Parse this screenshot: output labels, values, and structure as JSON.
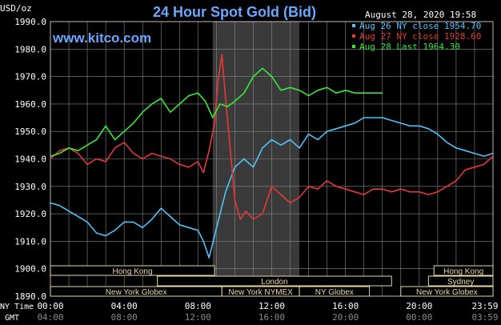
{
  "title": "24 Hour Spot Gold (Bid)",
  "site": "www.kitco.com",
  "timestamp": "August 28, 2020 19:58",
  "unit_label": "USD/oz",
  "row_labels": {
    "ny": "NY Time",
    "gmt": "GMT"
  },
  "legend": [
    {
      "text": "Aug 26 NY close 1954.70",
      "color": "#4fc3f7"
    },
    {
      "text": "Aug 27 NY close 1928.60",
      "color": "#e53935"
    },
    {
      "text": "Aug 28 Last 1964.30",
      "color": "#39e639"
    }
  ],
  "markets": [
    {
      "name": "Hong Kong",
      "row": 0,
      "start": 0,
      "end": 8.9
    },
    {
      "name": "London",
      "row": 1,
      "start": 5.8,
      "end": 18.5
    },
    {
      "name": "New York Globex",
      "row": 2,
      "start": 0,
      "end": 9.3
    },
    {
      "name": "New York NYMEX",
      "row": 2,
      "start": 9.3,
      "end": 13.5
    },
    {
      "name": "NY Globex",
      "row": 2,
      "start": 13.5,
      "end": 17.3
    },
    {
      "name": "Hong Kong",
      "row": 0,
      "start": 20.8,
      "end": 24
    },
    {
      "name": "Sydney",
      "row": 1,
      "start": 20.5,
      "end": 24
    },
    {
      "name": "New York Globex",
      "row": 2,
      "start": 19.0,
      "end": 24
    }
  ],
  "chart_data": {
    "type": "line",
    "title": "24 Hour Spot Gold (Bid)",
    "ylabel": "USD/oz",
    "xlim": [
      0,
      24
    ],
    "ylim": [
      1890,
      1990
    ],
    "y_ticks": [
      1890,
      1900,
      1910,
      1920,
      1930,
      1940,
      1950,
      1960,
      1970,
      1980,
      1990
    ],
    "y_tick_labels": [
      "1890.0",
      "1900.0",
      "1910.0",
      "1920.0",
      "1930.0",
      "1940.0",
      "1950.0",
      "1960.0",
      "1970.0",
      "1980.0",
      "1990.0"
    ],
    "x_ticks": [
      0,
      4,
      8,
      12,
      16,
      20,
      24
    ],
    "x_tick_labels_ny": [
      "00:00",
      "04:00",
      "08:00",
      "12:00",
      "16:00",
      "20:00",
      "23:59"
    ],
    "x_tick_labels_gmt": [
      "04:00",
      "08:00",
      "12:00",
      "16:00",
      "20:00",
      "00:00",
      "03:59"
    ],
    "shaded_region": [
      8.8,
      13.5
    ],
    "grid": true,
    "legend_position": "top-right",
    "series": [
      {
        "name": "Aug 26 NY close 1954.70",
        "color": "#4fc3f7",
        "x": [
          0,
          0.5,
          1,
          1.5,
          2,
          2.5,
          3,
          3.5,
          4,
          4.5,
          5,
          5.5,
          6,
          6.5,
          7,
          7.5,
          8,
          8.3,
          8.6,
          8.9,
          9.2,
          9.5,
          10,
          10.5,
          11,
          11.5,
          12,
          12.5,
          13,
          13.5,
          14,
          14.5,
          15,
          15.5,
          16,
          16.5,
          17,
          17.5,
          18,
          18.5,
          19,
          19.5,
          20,
          20.5,
          21,
          21.5,
          22,
          22.5,
          23,
          23.5,
          24
        ],
        "y": [
          1924,
          1923,
          1921,
          1919,
          1917,
          1913,
          1912,
          1914,
          1917,
          1917,
          1915,
          1918,
          1922,
          1919,
          1916,
          1915,
          1914,
          1910,
          1904,
          1912,
          1920,
          1928,
          1937,
          1940,
          1937,
          1944,
          1947,
          1945,
          1947,
          1944,
          1949,
          1947,
          1950,
          1951,
          1952,
          1953,
          1955,
          1955,
          1955,
          1954,
          1953,
          1952,
          1952,
          1951,
          1949,
          1946,
          1944,
          1943,
          1942,
          1941,
          1942
        ]
      },
      {
        "name": "Aug 27 NY close 1928.60",
        "color": "#e53935",
        "x": [
          0,
          0.5,
          1,
          1.5,
          2,
          2.5,
          3,
          3.5,
          4,
          4.5,
          5,
          5.5,
          6,
          6.5,
          7,
          7.5,
          8,
          8.3,
          8.6,
          8.9,
          9.1,
          9.3,
          9.5,
          9.8,
          10,
          10.3,
          10.6,
          11,
          11.5,
          12,
          12.5,
          13,
          13.5,
          14,
          14.5,
          15,
          15.5,
          16,
          16.5,
          17,
          17.5,
          18,
          18.5,
          19,
          19.5,
          20,
          20.5,
          21,
          21.5,
          22,
          22.5,
          23,
          23.5,
          24
        ],
        "y": [
          1940,
          1943,
          1944,
          1942,
          1938,
          1940,
          1939,
          1944,
          1946,
          1942,
          1940,
          1942,
          1941,
          1940,
          1938,
          1937,
          1939,
          1935,
          1943,
          1953,
          1969,
          1978,
          1962,
          1940,
          1925,
          1918,
          1921,
          1918,
          1920,
          1930,
          1927,
          1924,
          1926,
          1930,
          1929,
          1932,
          1930,
          1929,
          1928,
          1927,
          1929,
          1929,
          1928,
          1929,
          1928,
          1928,
          1927,
          1928,
          1930,
          1932,
          1936,
          1937,
          1938,
          1941
        ]
      },
      {
        "name": "Aug 28 Last 1964.30",
        "color": "#39e639",
        "x": [
          0,
          0.5,
          1,
          1.5,
          2,
          2.5,
          3,
          3.5,
          4,
          4.5,
          5,
          5.5,
          6,
          6.5,
          7,
          7.5,
          8,
          8.4,
          8.8,
          9.2,
          9.6,
          10,
          10.5,
          11,
          11.5,
          12,
          12.5,
          13,
          13.5,
          14,
          14.5,
          15,
          15.5,
          16,
          16.5,
          17,
          17.5,
          18
        ],
        "y": [
          1941,
          1942,
          1944,
          1943,
          1945,
          1947,
          1952,
          1947,
          1950,
          1953,
          1957,
          1960,
          1962,
          1957,
          1960,
          1963,
          1964,
          1961,
          1955,
          1960,
          1959,
          1961,
          1964,
          1970,
          1973,
          1970,
          1965,
          1966,
          1965,
          1963,
          1965,
          1966,
          1964,
          1965,
          1964,
          1964,
          1964,
          1964
        ]
      }
    ]
  }
}
